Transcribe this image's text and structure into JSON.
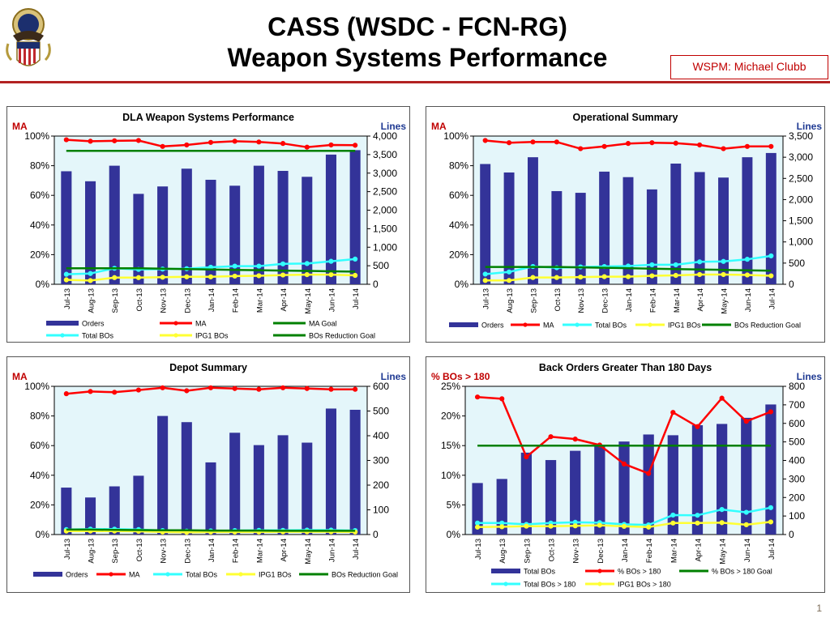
{
  "header": {
    "title_line1": "CASS (WSDC - FCN-RG)",
    "title_line2": "Weapon Systems Performance",
    "wspm_label": "WSPM: Michael Clubb",
    "page_number": "1"
  },
  "colors": {
    "orders": "#333399",
    "ma": "#ff0000",
    "total_bos": "#33ffff",
    "ipg1_bos": "#ffff33",
    "goal": "#008000",
    "plot_bg": "#e4f6fa",
    "accent_red": "#c00000",
    "axis_blue": "#1f3a93"
  },
  "chart_data": [
    {
      "type": "bar",
      "title": "DLA Weapon Systems Performance",
      "left_axis_title": "MA",
      "right_axis_title": "Lines",
      "left_ticks": [
        "0%",
        "20%",
        "40%",
        "60%",
        "80%",
        "100%"
      ],
      "right_ticks": [
        "0",
        "500",
        "1,000",
        "1,500",
        "2,000",
        "2,500",
        "3,000",
        "3,500",
        "4,000"
      ],
      "ylim_left": [
        0,
        100
      ],
      "ylim_right": [
        0,
        4000
      ],
      "categories": [
        "Jul-13",
        "Aug-13",
        "Sep-13",
        "Oct-13",
        "Nov-13",
        "Dec-13",
        "Jan-14",
        "Feb-14",
        "Mar-14",
        "Apr-14",
        "May-14",
        "Jun-14",
        "Jul-14"
      ],
      "series": [
        {
          "name": "Orders",
          "kind": "bar",
          "axis": "right",
          "color": "#333399",
          "values": [
            3050,
            2780,
            3200,
            2440,
            2640,
            3120,
            2820,
            2660,
            3200,
            3060,
            2900,
            3500,
            3620
          ]
        },
        {
          "name": "MA",
          "kind": "line",
          "axis": "left",
          "color": "#ff0000",
          "marker": true,
          "values": [
            97.5,
            96.5,
            96.8,
            97,
            93,
            94,
            95.7,
            96.5,
            96,
            95,
            92.5,
            94,
            93.8
          ]
        },
        {
          "name": "MA Goal",
          "kind": "line",
          "axis": "left",
          "color": "#008000",
          "values": [
            90,
            90,
            90,
            90,
            90,
            90,
            90,
            90,
            90,
            90,
            90,
            90,
            90
          ]
        },
        {
          "name": "Total BOs",
          "kind": "line",
          "axis": "right",
          "color": "#33ffff",
          "marker": true,
          "values": [
            270,
            290,
            430,
            400,
            410,
            420,
            460,
            490,
            490,
            550,
            560,
            620,
            680
          ]
        },
        {
          "name": "IPG1 BOs",
          "kind": "line",
          "axis": "right",
          "color": "#ffff33",
          "marker": true,
          "values": [
            120,
            100,
            180,
            180,
            190,
            200,
            200,
            220,
            230,
            250,
            260,
            260,
            240
          ]
        },
        {
          "name": "BOs Reduction Goal",
          "kind": "line",
          "axis": "right",
          "color": "#008000",
          "values": [
            430,
            430,
            430,
            430,
            420,
            410,
            400,
            390,
            380,
            370,
            360,
            350,
            340
          ]
        }
      ],
      "legend_rows": [
        [
          "Orders",
          "MA",
          "MA Goal"
        ],
        [
          "Total BOs",
          "IPG1 BOs",
          "BOs Reduction Goal"
        ]
      ]
    },
    {
      "type": "bar",
      "title": "Operational Summary",
      "left_axis_title": "MA",
      "right_axis_title": "Lines",
      "left_ticks": [
        "0%",
        "20%",
        "40%",
        "60%",
        "80%",
        "100%"
      ],
      "right_ticks": [
        "0",
        "500",
        "1,000",
        "1,500",
        "2,000",
        "2,500",
        "3,000",
        "3,500"
      ],
      "ylim_left": [
        0,
        100
      ],
      "ylim_right": [
        0,
        3500
      ],
      "categories": [
        "Jul-13",
        "Aug-13",
        "Sep-13",
        "Oct-13",
        "Nov-13",
        "Dec-13",
        "Jan-14",
        "Feb-14",
        "Mar-14",
        "Apr-14",
        "May-14",
        "Jun-14",
        "Jul-14"
      ],
      "series": [
        {
          "name": "Orders",
          "kind": "bar",
          "axis": "right",
          "color": "#333399",
          "values": [
            2840,
            2640,
            3000,
            2200,
            2160,
            2660,
            2530,
            2240,
            2850,
            2650,
            2520,
            3000,
            3100
          ]
        },
        {
          "name": "MA",
          "kind": "line",
          "axis": "left",
          "color": "#ff0000",
          "marker": true,
          "values": [
            97,
            95.5,
            96,
            96,
            91.5,
            93,
            95,
            95.5,
            95.2,
            94,
            91.5,
            93,
            93
          ]
        },
        {
          "name": "Total BOs",
          "kind": "line",
          "axis": "right",
          "color": "#33ffff",
          "marker": true,
          "values": [
            240,
            290,
            420,
            390,
            410,
            420,
            430,
            460,
            460,
            530,
            540,
            590,
            670
          ]
        },
        {
          "name": "IPG1 BOs",
          "kind": "line",
          "axis": "right",
          "color": "#ffff33",
          "marker": true,
          "values": [
            90,
            90,
            160,
            160,
            170,
            180,
            180,
            200,
            210,
            230,
            230,
            220,
            200
          ]
        },
        {
          "name": "BOs Reduction Goal",
          "kind": "line",
          "axis": "right",
          "color": "#008000",
          "values": [
            410,
            410,
            410,
            410,
            400,
            390,
            380,
            370,
            360,
            350,
            340,
            330,
            320
          ]
        }
      ],
      "legend_rows": [
        [
          "Orders",
          "MA",
          "Total BOs",
          "IPG1 BOs",
          "BOs Reduction Goal"
        ]
      ]
    },
    {
      "type": "bar",
      "title": "Depot Summary",
      "left_axis_title": "MA",
      "right_axis_title": "Lines",
      "left_ticks": [
        "0%",
        "20%",
        "40%",
        "60%",
        "80%",
        "100%"
      ],
      "right_ticks": [
        "0",
        "100",
        "200",
        "300",
        "400",
        "500",
        "600"
      ],
      "ylim_left": [
        0,
        100
      ],
      "ylim_right": [
        0,
        600
      ],
      "categories": [
        "Jul-13",
        "Aug-13",
        "Sep-13",
        "Oct-13",
        "Nov-13",
        "Dec-13",
        "Jan-14",
        "Feb-14",
        "Mar-14",
        "Apr-14",
        "May-14",
        "Jun-14",
        "Jul-14"
      ],
      "series": [
        {
          "name": "Orders",
          "kind": "bar",
          "axis": "right",
          "color": "#333399",
          "values": [
            190,
            150,
            195,
            238,
            480,
            455,
            292,
            412,
            362,
            402,
            372,
            510,
            505
          ]
        },
        {
          "name": "MA",
          "kind": "line",
          "axis": "left",
          "color": "#ff0000",
          "marker": true,
          "values": [
            95,
            96.5,
            96,
            97.5,
            99,
            97,
            99,
            98.5,
            98,
            99,
            98.5,
            98,
            98
          ]
        },
        {
          "name": "Total BOs",
          "kind": "line",
          "axis": "right",
          "color": "#33ffff",
          "marker": true,
          "values": [
            20,
            22,
            22,
            20,
            16,
            14,
            15,
            16,
            17,
            17,
            18,
            18,
            16
          ]
        },
        {
          "name": "IPG1 BOs",
          "kind": "line",
          "axis": "right",
          "color": "#ffff33",
          "marker": true,
          "values": [
            14,
            14,
            14,
            13,
            10,
            9,
            10,
            10,
            10,
            11,
            11,
            11,
            10
          ]
        },
        {
          "name": "BOs Reduction Goal",
          "kind": "line",
          "axis": "right",
          "color": "#008000",
          "values": [
            20,
            20,
            19,
            18,
            17,
            17,
            16,
            16,
            16,
            15,
            15,
            15,
            15
          ]
        }
      ],
      "legend_rows": [
        [
          "Orders",
          "MA",
          "Total BOs",
          "IPG1 BOs",
          "BOs Reduction Goal"
        ]
      ]
    },
    {
      "type": "bar",
      "title": "Back Orders Greater Than 180 Days",
      "left_axis_title": "% BOs > 180",
      "right_axis_title": "Lines",
      "left_ticks": [
        "0%",
        "5%",
        "10%",
        "15%",
        "20%",
        "25%"
      ],
      "right_ticks": [
        "0",
        "100",
        "200",
        "300",
        "400",
        "500",
        "600",
        "700",
        "800"
      ],
      "ylim_left": [
        0,
        25
      ],
      "ylim_right": [
        0,
        800
      ],
      "categories": [
        "Jul-13",
        "Aug-13",
        "Sep-13",
        "Oct-13",
        "Nov-13",
        "Dec-13",
        "Jan-14",
        "Feb-14",
        "Mar-14",
        "Apr-14",
        "May-14",
        "Jun-14",
        "Jul-14"
      ],
      "series": [
        {
          "name": "Total BOs",
          "kind": "bar",
          "axis": "right",
          "color": "#333399",
          "values": [
            278,
            300,
            442,
            402,
            452,
            482,
            502,
            540,
            536,
            590,
            597,
            630,
            702
          ]
        },
        {
          "name": "% BOs > 180",
          "kind": "line",
          "axis": "left",
          "color": "#ff0000",
          "marker": true,
          "values": [
            23.2,
            22.9,
            13.1,
            16.5,
            16.1,
            15.1,
            11.9,
            10.3,
            20.6,
            18.2,
            23,
            19.1,
            20.7
          ]
        },
        {
          "name": "% BOs > 180 Goal",
          "kind": "line",
          "axis": "left",
          "color": "#008000",
          "values": [
            15,
            15,
            15,
            15,
            15,
            15,
            15,
            15,
            15,
            15,
            15,
            15,
            15
          ]
        },
        {
          "name": "Total BOs > 180",
          "kind": "line",
          "axis": "right",
          "color": "#33ffff",
          "marker": true,
          "values": [
            62,
            62,
            55,
            62,
            66,
            64,
            55,
            52,
            105,
            104,
            135,
            120,
            145
          ]
        },
        {
          "name": "IPG1 BOs > 180",
          "kind": "line",
          "axis": "right",
          "color": "#ffff33",
          "marker": true,
          "values": [
            40,
            42,
            45,
            45,
            47,
            50,
            44,
            40,
            62,
            62,
            64,
            53,
            68
          ]
        }
      ],
      "legend_rows": [
        [
          "Total BOs",
          "% BOs > 180",
          "% BOs > 180 Goal"
        ],
        [
          "Total BOs > 180",
          "IPG1 BOs > 180"
        ]
      ]
    }
  ]
}
